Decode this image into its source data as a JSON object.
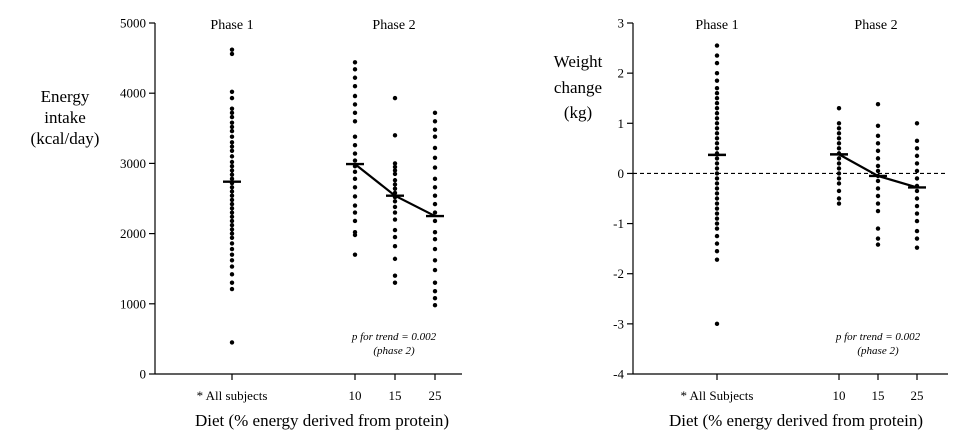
{
  "chart_data": [
    {
      "type": "scatter",
      "ylabel": [
        "Energy",
        "intake",
        "(kcal/day)"
      ],
      "xlabel": "Diet (% energy derived from protein)",
      "ylim": [
        0,
        5000
      ],
      "yticks": [
        0,
        1000,
        2000,
        3000,
        4000,
        5000
      ],
      "categories": [
        "* All subjects",
        "10",
        "15",
        "25"
      ],
      "phase_labels": [
        "Phase 1",
        "Phase 2"
      ],
      "annotation": [
        "p for trend = 0.002",
        "(phase 2)"
      ],
      "grid": false,
      "series": [
        {
          "category": "* All subjects",
          "mean": 2740,
          "values": [
            4620,
            4560,
            4020,
            3930,
            3780,
            3720,
            3660,
            3580,
            3520,
            3460,
            3380,
            3300,
            3240,
            3180,
            3100,
            3020,
            2960,
            2900,
            2840,
            2780,
            2720,
            2660,
            2600,
            2540,
            2480,
            2420,
            2360,
            2300,
            2240,
            2180,
            2120,
            2060,
            2000,
            1940,
            1860,
            1780,
            1700,
            1620,
            1530,
            1420,
            1300,
            1210,
            450
          ]
        },
        {
          "category": "10",
          "mean": 2990,
          "values": [
            4440,
            4340,
            4220,
            4100,
            3960,
            3840,
            3720,
            3600,
            3380,
            3260,
            3140,
            3040,
            2960,
            2880,
            2780,
            2660,
            2530,
            2400,
            2300,
            2180,
            2020,
            1980,
            1700
          ]
        },
        {
          "category": "15",
          "mean": 2540,
          "values": [
            3930,
            3400,
            3000,
            2950,
            2900,
            2850,
            2760,
            2700,
            2640,
            2580,
            2520,
            2460,
            2380,
            2300,
            2200,
            2050,
            1950,
            1820,
            1640,
            1400,
            1300
          ]
        },
        {
          "category": "25",
          "mean": 2250,
          "values": [
            3720,
            3600,
            3480,
            3380,
            3220,
            3080,
            2940,
            2780,
            2660,
            2540,
            2420,
            2300,
            2180,
            2020,
            1920,
            1780,
            1620,
            1480,
            1300,
            1180,
            1080,
            980
          ]
        }
      ],
      "trend_line": {
        "categories": [
          "10",
          "15",
          "25"
        ],
        "values": [
          2990,
          2540,
          2250
        ]
      }
    },
    {
      "type": "scatter",
      "ylabel": [
        "Weight",
        "change",
        "(kg)"
      ],
      "xlabel": "Diet (% energy derived from protein)",
      "ylim": [
        -4,
        3
      ],
      "yticks": [
        -4,
        -3,
        -2,
        -1,
        0,
        1,
        2,
        3
      ],
      "categories": [
        "* All Subjects",
        "10",
        "15",
        "25"
      ],
      "phase_labels": [
        "Phase 1",
        "Phase 2"
      ],
      "annotation": [
        "p for trend = 0.002",
        "(phase 2)"
      ],
      "reference_line": {
        "y": 0,
        "style": "dashed"
      },
      "grid": false,
      "series": [
        {
          "category": "* All Subjects",
          "mean": 0.37,
          "values": [
            2.55,
            2.35,
            2.2,
            2.0,
            1.85,
            1.7,
            1.6,
            1.5,
            1.4,
            1.3,
            1.2,
            1.1,
            1.0,
            0.9,
            0.8,
            0.7,
            0.6,
            0.5,
            0.4,
            0.3,
            0.2,
            0.1,
            0.0,
            -0.1,
            -0.2,
            -0.3,
            -0.4,
            -0.5,
            -0.6,
            -0.7,
            -0.8,
            -0.9,
            -1.0,
            -1.1,
            -1.25,
            -1.4,
            -1.55,
            -1.72,
            -3.0
          ]
        },
        {
          "category": "10",
          "mean": 0.38,
          "values": [
            1.3,
            1.0,
            0.9,
            0.8,
            0.7,
            0.6,
            0.5,
            0.4,
            0.3,
            0.2,
            0.1,
            0.0,
            -0.1,
            -0.2,
            -0.35,
            -0.5,
            -0.6
          ]
        },
        {
          "category": "15",
          "mean": -0.05,
          "values": [
            1.38,
            0.95,
            0.75,
            0.6,
            0.45,
            0.3,
            0.15,
            0.05,
            -0.05,
            -0.15,
            -0.3,
            -0.45,
            -0.6,
            -0.75,
            -1.1,
            -1.3,
            -1.42
          ]
        },
        {
          "category": "25",
          "mean": -0.28,
          "values": [
            1.0,
            0.65,
            0.5,
            0.35,
            0.2,
            0.05,
            -0.1,
            -0.25,
            -0.35,
            -0.5,
            -0.65,
            -0.8,
            -0.95,
            -1.15,
            -1.3,
            -1.48
          ]
        }
      ],
      "trend_line": {
        "categories": [
          "10",
          "15",
          "25"
        ],
        "values": [
          0.38,
          -0.05,
          -0.28
        ]
      }
    }
  ]
}
